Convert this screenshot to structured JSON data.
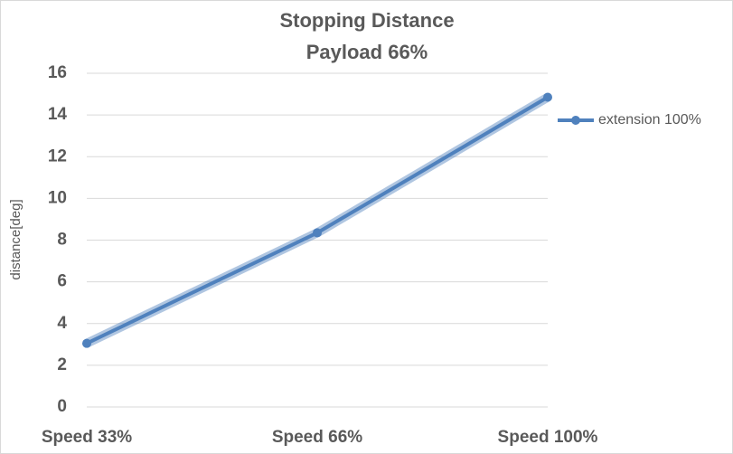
{
  "chart_data": {
    "type": "line",
    "title": "Stopping Distance",
    "subtitle": "Payload 66%",
    "y_label": "distance[deg]",
    "categories": [
      "Speed 33%",
      "Speed 66%",
      "Speed 100%"
    ],
    "series": [
      {
        "name": "extension 100%",
        "color": "#4f81bd",
        "values": [
          3.05,
          8.35,
          14.85
        ]
      }
    ],
    "ylim": [
      0,
      16
    ],
    "yticks": [
      0,
      2,
      4,
      6,
      8,
      10,
      12,
      14,
      16
    ],
    "grid": true,
    "legend": "right"
  }
}
